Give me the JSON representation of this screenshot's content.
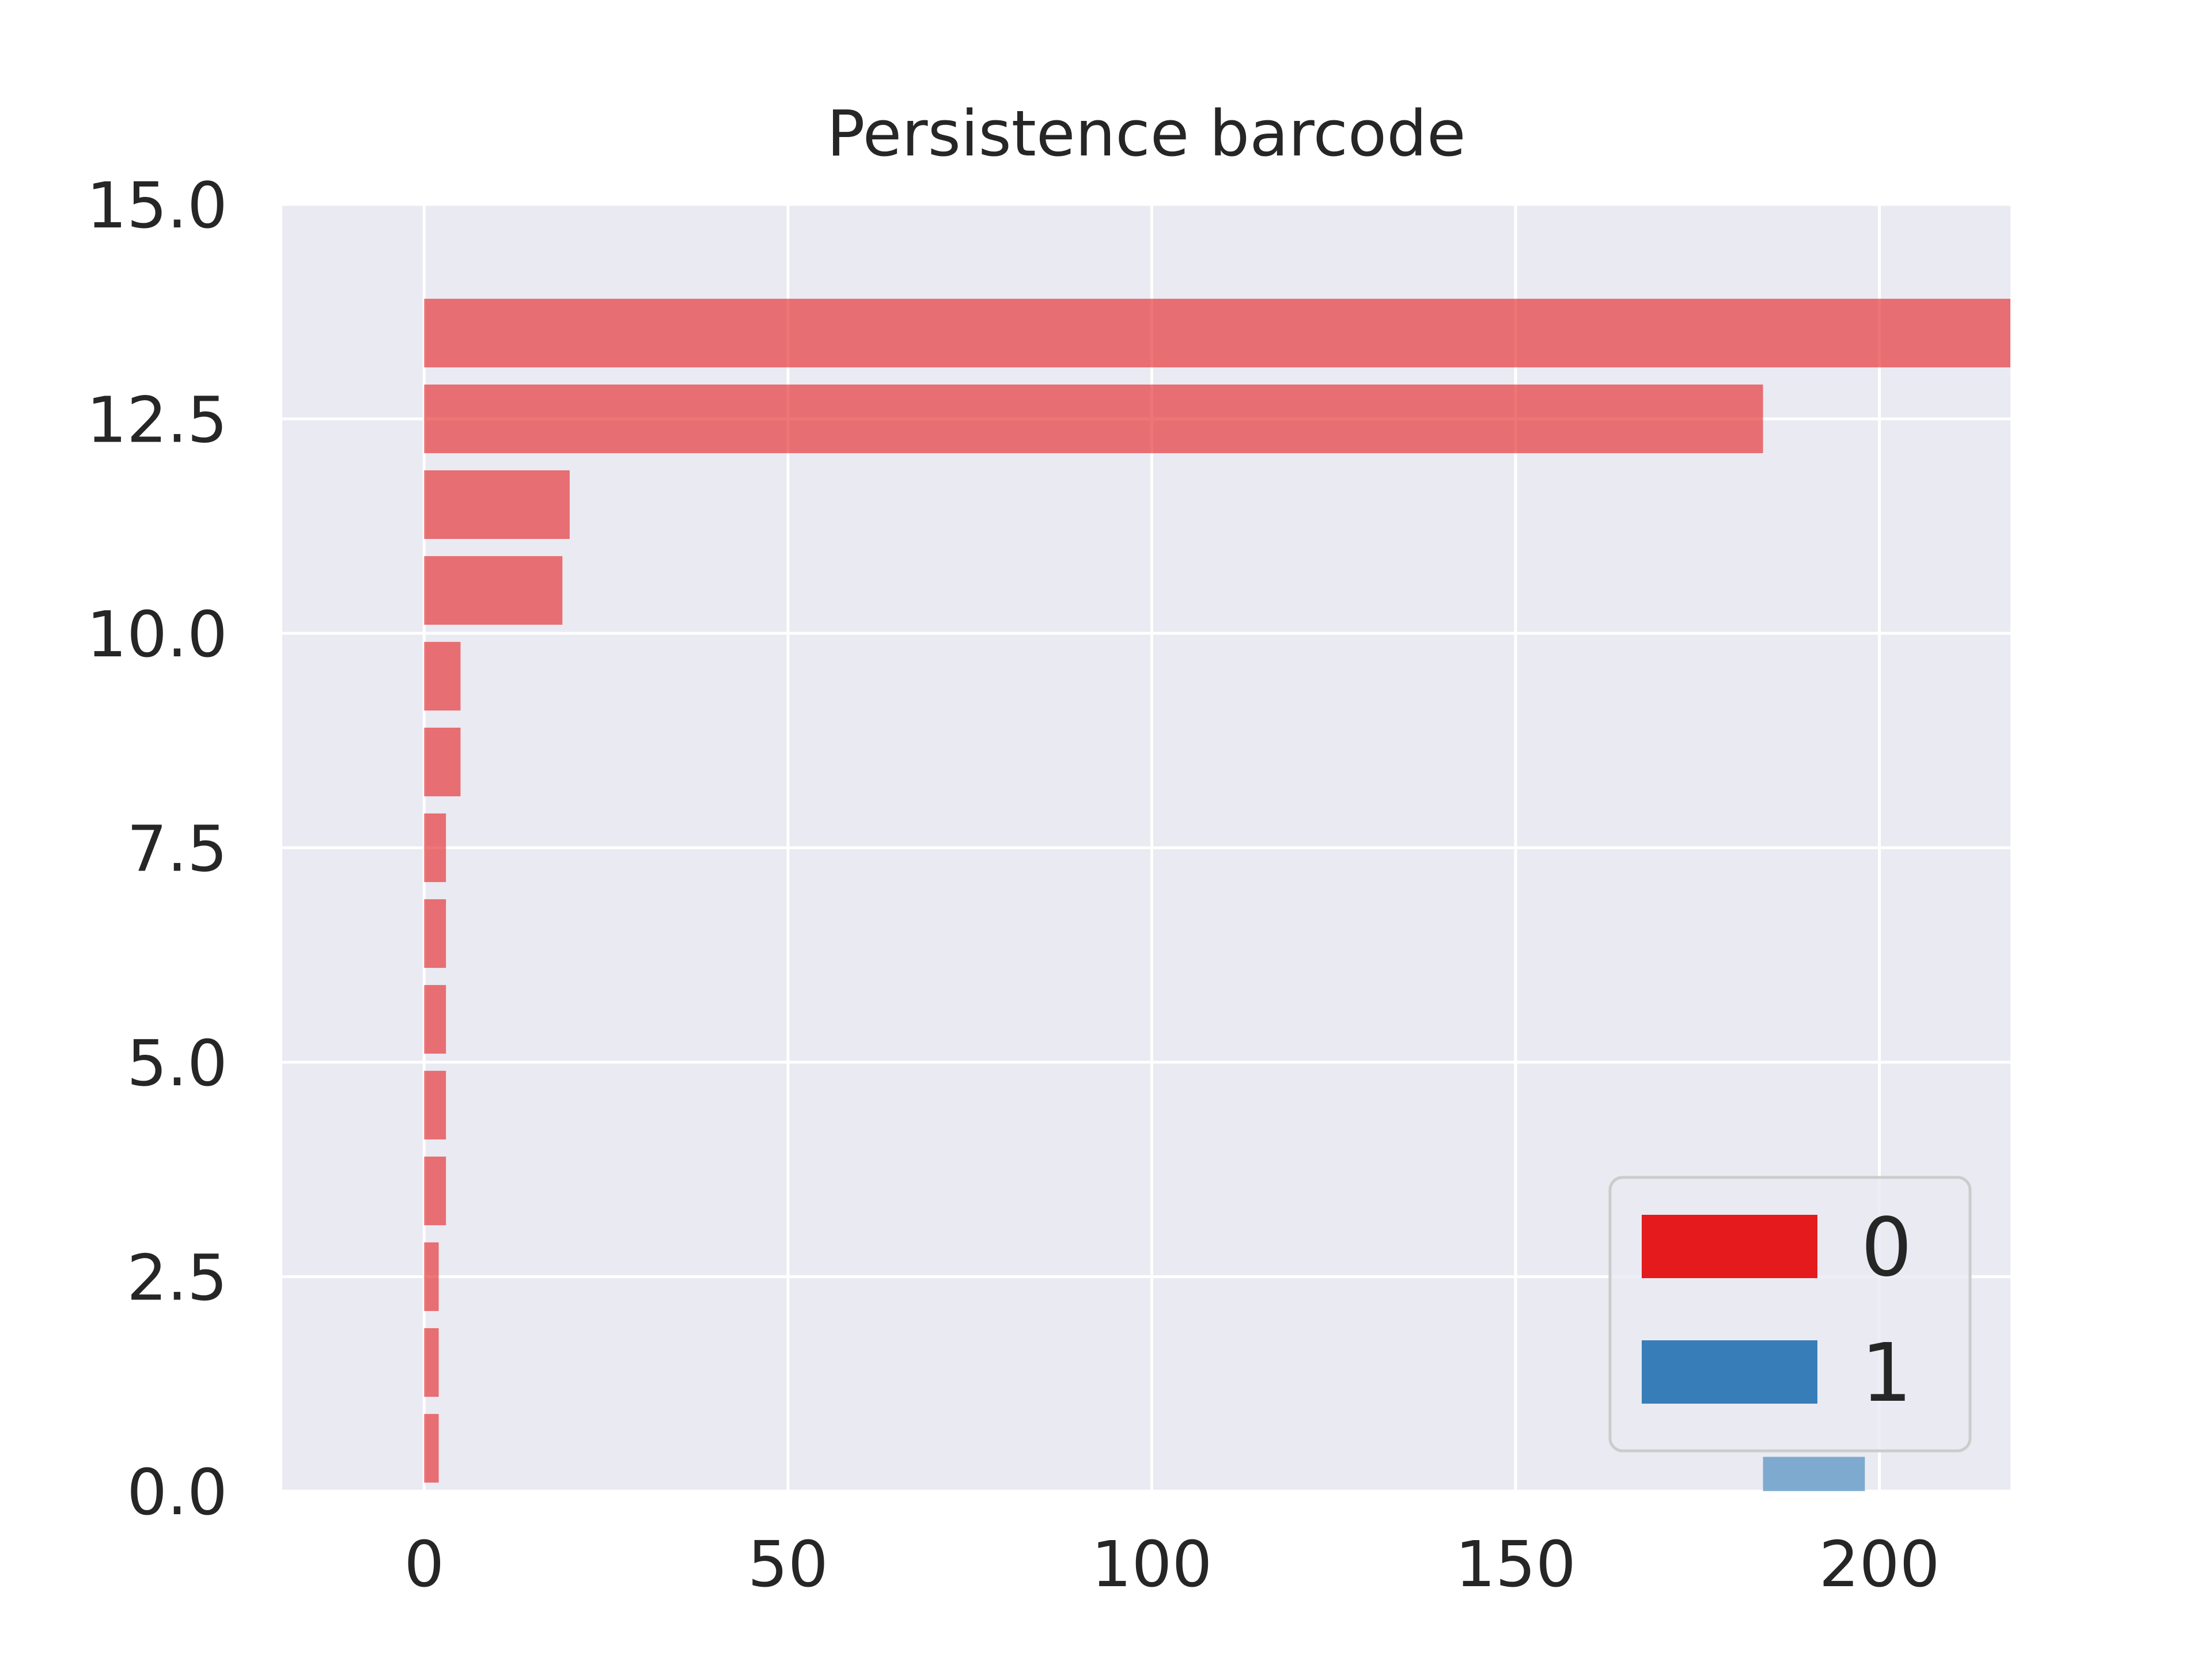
{
  "chart_data": {
    "type": "bar",
    "orientation": "horizontal",
    "title": "Persistence barcode",
    "xlabel": "",
    "ylabel": "",
    "xlim": [
      -19.5,
      218
    ],
    "ylim": [
      0,
      15
    ],
    "xticks": [
      0,
      50,
      100,
      150,
      200
    ],
    "xtick_labels": [
      "0",
      "50",
      "100",
      "150",
      "200"
    ],
    "yticks": [
      0,
      2.5,
      5,
      7.5,
      10,
      12.5,
      15
    ],
    "ytick_labels": [
      "0.0",
      "2.5",
      "5.0",
      "7.5",
      "10.0",
      "12.5",
      "15.0"
    ],
    "grid": true,
    "legend": {
      "placement": "lower-right",
      "entries": [
        "0",
        "1"
      ]
    },
    "colors": {
      "0": "#e41a1c",
      "1": "#377eb8",
      "background": "#eaeaf2",
      "grid": "#ffffff"
    },
    "bar_alpha": 0.6,
    "series": [
      {
        "name": "0",
        "bars": [
          {
            "y": 0.5,
            "start": 0,
            "end": 2
          },
          {
            "y": 1.5,
            "start": 0,
            "end": 2
          },
          {
            "y": 2.5,
            "start": 0,
            "end": 2
          },
          {
            "y": 3.5,
            "start": 0,
            "end": 3
          },
          {
            "y": 4.5,
            "start": 0,
            "end": 3
          },
          {
            "y": 5.5,
            "start": 0,
            "end": 3
          },
          {
            "y": 6.5,
            "start": 0,
            "end": 3
          },
          {
            "y": 7.5,
            "start": 0,
            "end": 3
          },
          {
            "y": 8.5,
            "start": 0,
            "end": 5
          },
          {
            "y": 9.5,
            "start": 0,
            "end": 5
          },
          {
            "y": 10.5,
            "start": 0,
            "end": 19
          },
          {
            "y": 11.5,
            "start": 0,
            "end": 20
          },
          {
            "y": 12.5,
            "start": 0,
            "end": 184
          },
          {
            "y": 13.5,
            "start": 0,
            "end": 218
          }
        ]
      },
      {
        "name": "1",
        "bars": [
          {
            "y": 0,
            "start": 184,
            "end": 198
          }
        ]
      }
    ]
  }
}
